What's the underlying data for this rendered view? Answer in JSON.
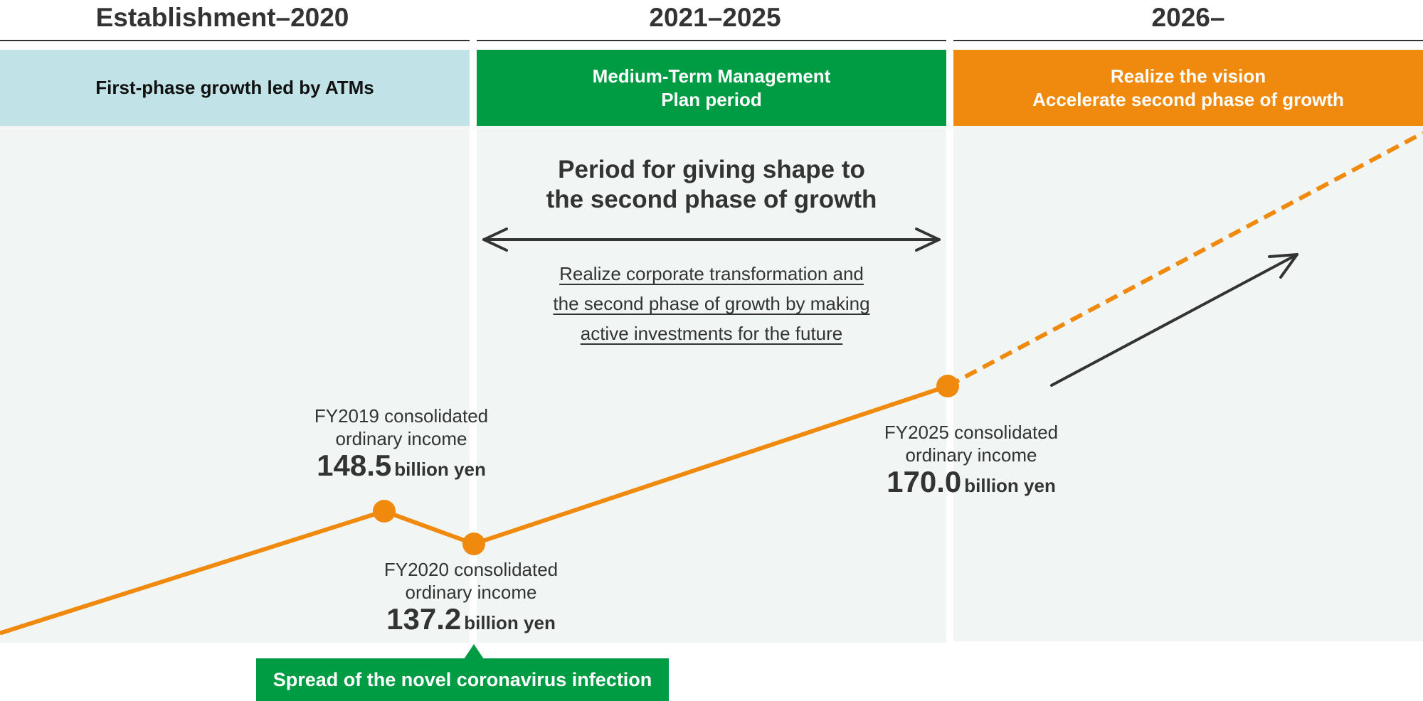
{
  "eras": [
    {
      "title": "Establishment–2020",
      "band": [
        "First-phase growth led by ATMs"
      ]
    },
    {
      "title": "2021–2025",
      "band": [
        "Medium-Term Management",
        "Plan period"
      ]
    },
    {
      "title": "2026–",
      "band": [
        "Realize the vision",
        "Accelerate second phase of growth"
      ]
    }
  ],
  "period": {
    "title": [
      "Period for giving shape to",
      "the second phase of growth"
    ],
    "description": [
      "Realize corporate transformation and",
      "the second phase of growth by making",
      "active investments for the future"
    ]
  },
  "points": [
    {
      "label": [
        "FY2019 consolidated",
        "ordinary income"
      ],
      "value": "148.5",
      "unit": "billion yen"
    },
    {
      "label": [
        "FY2020 consolidated",
        "ordinary income"
      ],
      "value": "137.2",
      "unit": "billion yen"
    },
    {
      "label": [
        "FY2025 consolidated",
        "ordinary income"
      ],
      "value": "170.0",
      "unit": "billion yen"
    }
  ],
  "event": {
    "label": "Spread of the novel coronavirus infection"
  },
  "colors": {
    "line": "#f08a0e",
    "band_early": "#c1e3e7",
    "band_mid": "#009c44",
    "band_late": "#f08a0e",
    "background": "#f1f6f5",
    "event": "#009c44"
  }
}
